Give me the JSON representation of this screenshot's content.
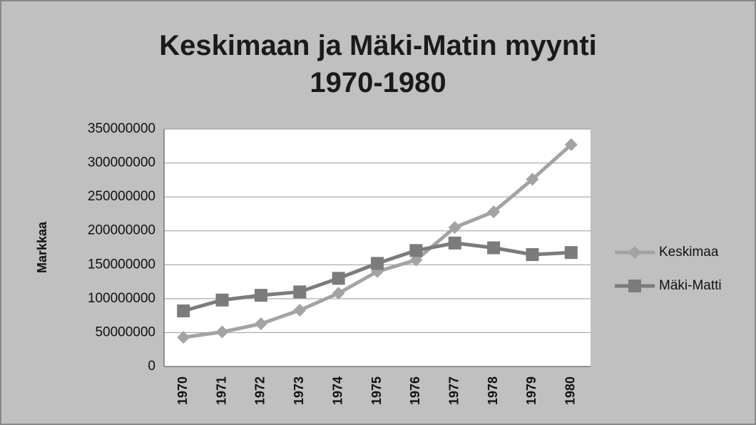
{
  "chart_data": {
    "type": "line",
    "title": "Keskimaan ja Mäki-Matin myynti 1970-1980",
    "y_label": "Markkaa",
    "categories": [
      "1970",
      "1971",
      "1972",
      "1973",
      "1974",
      "1975",
      "1976",
      "1977",
      "1978",
      "1979",
      "1980"
    ],
    "series": [
      {
        "name": "Keskimaa",
        "color": "#a3a3a3",
        "marker": "diamond",
        "values": [
          43000000,
          51000000,
          63000000,
          83000000,
          108000000,
          140000000,
          157000000,
          205000000,
          228000000,
          276000000,
          327000000
        ]
      },
      {
        "name": "Mäki-Matti",
        "color": "#7b7b7b",
        "marker": "square",
        "values": [
          82000000,
          98000000,
          105000000,
          110000000,
          130000000,
          152000000,
          171000000,
          182000000,
          175000000,
          165000000,
          168000000
        ]
      }
    ],
    "ylim": [
      0,
      350000000
    ],
    "yticks": [
      0,
      50000000,
      100000000,
      150000000,
      200000000,
      250000000,
      300000000,
      350000000
    ],
    "grid": true,
    "legend": "right"
  }
}
